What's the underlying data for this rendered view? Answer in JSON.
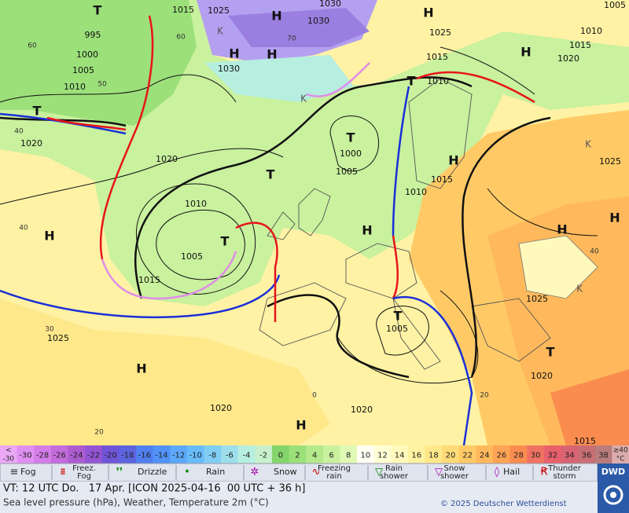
{
  "map": {
    "isobar_labels": [
      "1015",
      "1025",
      "1030",
      "1030",
      "995",
      "1000",
      "1005",
      "1010",
      "1030",
      "1025",
      "1015",
      "1010",
      "1010",
      "1015",
      "1020",
      "1005",
      "1020",
      "1020",
      "1010",
      "1005",
      "1015",
      "1000",
      "1005",
      "1010",
      "1015",
      "1025",
      "1025",
      "1025",
      "1005",
      "1020",
      "1020",
      "1020",
      "1015"
    ],
    "centers": [
      "T",
      "H",
      "K",
      "H",
      "H",
      "H",
      "H",
      "T",
      "K",
      "T",
      "T",
      "T",
      "H",
      "H",
      "T",
      "H",
      "H",
      "H",
      "K",
      "T",
      "T",
      "H",
      "H",
      "K"
    ],
    "contour_labels": [
      "60",
      "50",
      "40",
      "40",
      "30",
      "20",
      "70",
      "60",
      "40",
      "20",
      "0"
    ]
  },
  "legend": {
    "below_label": [
      "<",
      "-30"
    ],
    "above_label": [
      "≥40",
      "°C"
    ],
    "temperatures": [
      -30,
      -28,
      -26,
      -24,
      -22,
      -20,
      -18,
      -16,
      -14,
      -12,
      -10,
      -8,
      -6,
      -4,
      -2,
      0,
      2,
      4,
      6,
      8,
      10,
      12,
      14,
      16,
      18,
      20,
      22,
      24,
      26,
      28,
      30,
      32,
      34,
      36,
      38
    ],
    "colors": [
      "#eaa8f6",
      "#e090f0",
      "#d47ce8",
      "#c46cdc",
      "#ac5cd0",
      "#9454d4",
      "#7054d8",
      "#5c64e0",
      "#507ff0",
      "#5092f6",
      "#5ca8fa",
      "#68bcfa",
      "#80cef4",
      "#9cdeec",
      "#b6eedf",
      "#c8f0cc",
      "#84d66c",
      "#9ce07a",
      "#b4e98c",
      "#caf19e",
      "#e0f9b4",
      "#fffff4",
      "#ffffd4",
      "#fffabc",
      "#fff2a0",
      "#ffe88a",
      "#ffdb78",
      "#ffca66",
      "#ffb95c",
      "#ffa454",
      "#fa8c50",
      "#f07262",
      "#e8606c",
      "#d86472",
      "#c86e74",
      "#b87c7c",
      "#dcacac"
    ],
    "weather": [
      {
        "label": [
          "Fog"
        ]
      },
      {
        "label": [
          "Freez.",
          "Fog"
        ]
      },
      {
        "label": [
          "Drizzle"
        ]
      },
      {
        "label": [
          "Rain"
        ]
      },
      {
        "label": [
          "Snow"
        ]
      },
      {
        "label": [
          "Freezing",
          "rain"
        ]
      },
      {
        "label": [
          "Rain",
          "shower"
        ]
      },
      {
        "label": [
          "Snow",
          "shower"
        ]
      },
      {
        "label": [
          "Hail"
        ]
      },
      {
        "label": [
          "Thunder",
          "storm"
        ]
      }
    ]
  },
  "footer": {
    "valid_time": "VT: 12 UTC Do.   17 Apr. [ICON 2025-04-16  00 UTC + 36 h]",
    "description": "Sea level pressure (hPa), Weather, Temperature 2m (°C)",
    "copyright": "© 2025 Deutscher Wetterdienst",
    "logo": "DWD"
  }
}
